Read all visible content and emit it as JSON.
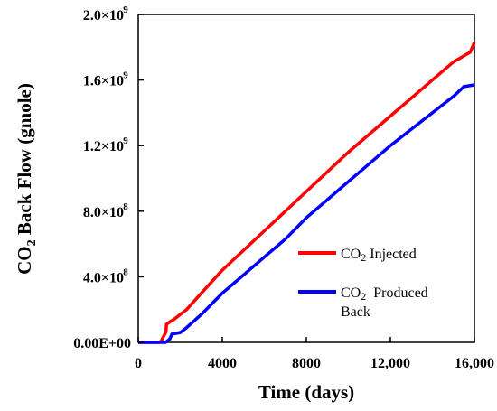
{
  "chart_data": {
    "type": "line",
    "xlabel": "Time (days)",
    "ylabel_main": "CO",
    "ylabel_sub": "2",
    "ylabel_rest": " Back Flow (gmole)",
    "xlim": [
      0,
      16000
    ],
    "ylim": [
      0,
      2000000000
    ],
    "x_ticks": [
      {
        "value": 0,
        "label": "0"
      },
      {
        "value": 4000,
        "label": "4000"
      },
      {
        "value": 8000,
        "label": "8000"
      },
      {
        "value": 12000,
        "label": "12,000"
      },
      {
        "value": 16000,
        "label": "16,000"
      }
    ],
    "y_ticks": [
      {
        "value": 0,
        "base": "0.00E+00",
        "exp": ""
      },
      {
        "value": 400000000,
        "base": "4.0×10",
        "exp": "8"
      },
      {
        "value": 800000000,
        "base": "8.0×10",
        "exp": "8"
      },
      {
        "value": 1200000000,
        "base": "1.2×10",
        "exp": "9"
      },
      {
        "value": 1600000000,
        "base": "1.6×10",
        "exp": "9"
      },
      {
        "value": 2000000000,
        "base": "2.0×10",
        "exp": "9"
      }
    ],
    "grid": false,
    "legend_position": "bottom-right",
    "series": [
      {
        "name_main": "CO",
        "name_sub": "2",
        "name_rest": " Injected",
        "color": "#ff0000",
        "points": [
          [
            0,
            0
          ],
          [
            1000,
            0
          ],
          [
            1100,
            10000000
          ],
          [
            1320,
            65000000
          ],
          [
            1340,
            110000000
          ],
          [
            1500,
            125000000
          ],
          [
            1700,
            140000000
          ],
          [
            2000,
            170000000
          ],
          [
            2300,
            200000000
          ],
          [
            3000,
            300000000
          ],
          [
            4000,
            440000000
          ],
          [
            5000,
            560000000
          ],
          [
            6000,
            680000000
          ],
          [
            7000,
            800000000
          ],
          [
            8000,
            920000000
          ],
          [
            9000,
            1040000000
          ],
          [
            10000,
            1160000000
          ],
          [
            11000,
            1270000000
          ],
          [
            12000,
            1380000000
          ],
          [
            13000,
            1490000000
          ],
          [
            14000,
            1600000000
          ],
          [
            15000,
            1710000000
          ],
          [
            15800,
            1770000000
          ],
          [
            16000,
            1830000000
          ]
        ]
      },
      {
        "name_main": "CO",
        "name_sub": "2",
        "name_rest": "  Produced",
        "name_line2": "Back",
        "color": "#0000ff",
        "points": [
          [
            0,
            0
          ],
          [
            1300,
            0
          ],
          [
            1500,
            20000000
          ],
          [
            1600,
            50000000
          ],
          [
            2000,
            60000000
          ],
          [
            2300,
            90000000
          ],
          [
            3000,
            170000000
          ],
          [
            4000,
            300000000
          ],
          [
            5000,
            410000000
          ],
          [
            6000,
            520000000
          ],
          [
            7000,
            630000000
          ],
          [
            8000,
            760000000
          ],
          [
            9000,
            870000000
          ],
          [
            10000,
            980000000
          ],
          [
            11000,
            1090000000
          ],
          [
            12000,
            1200000000
          ],
          [
            13000,
            1300000000
          ],
          [
            14000,
            1400000000
          ],
          [
            15000,
            1500000000
          ],
          [
            15500,
            1560000000
          ],
          [
            16000,
            1570000000
          ]
        ]
      }
    ]
  }
}
